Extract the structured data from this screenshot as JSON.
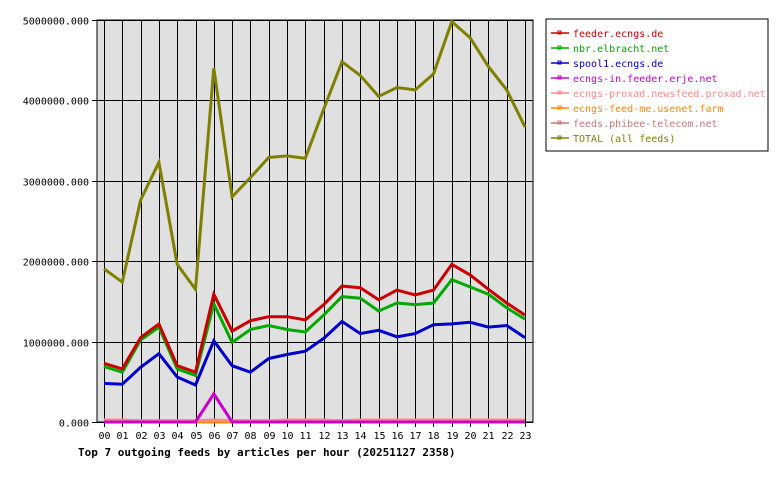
{
  "chart_data": {
    "type": "line",
    "title": "Top 7 outgoing feeds by articles per hour (20251127 2358)",
    "xlabel": "",
    "ylabel": "",
    "ylim": [
      0,
      5000000
    ],
    "yticks": [
      "0.000",
      "1000000.000",
      "2000000.000",
      "3000000.000",
      "4000000.000",
      "5000000.000"
    ],
    "grid": true,
    "legend_position": "right",
    "categories": [
      "00",
      "01",
      "02",
      "03",
      "04",
      "05",
      "06",
      "07",
      "08",
      "09",
      "10",
      "11",
      "12",
      "13",
      "14",
      "15",
      "16",
      "17",
      "18",
      "19",
      "20",
      "21",
      "22",
      "23"
    ],
    "series": [
      {
        "name": "feeder.ecngs.de",
        "color": "#cc0000",
        "values": [
          730000,
          660000,
          1050000,
          1220000,
          700000,
          620000,
          1590000,
          1130000,
          1260000,
          1310000,
          1310000,
          1270000,
          1460000,
          1690000,
          1670000,
          1520000,
          1640000,
          1580000,
          1640000,
          1960000,
          1830000,
          1650000,
          1480000,
          1330000
        ]
      },
      {
        "name": "nbr.elbracht.net",
        "color": "#00aa00",
        "values": [
          690000,
          620000,
          1020000,
          1180000,
          660000,
          580000,
          1470000,
          990000,
          1150000,
          1200000,
          1150000,
          1120000,
          1330000,
          1560000,
          1540000,
          1380000,
          1480000,
          1460000,
          1480000,
          1770000,
          1680000,
          1590000,
          1420000,
          1280000
        ]
      },
      {
        "name": "spool1.ecngs.de",
        "color": "#0000cc",
        "values": [
          480000,
          470000,
          680000,
          850000,
          560000,
          460000,
          1010000,
          700000,
          620000,
          790000,
          840000,
          880000,
          1040000,
          1250000,
          1100000,
          1140000,
          1060000,
          1100000,
          1210000,
          1220000,
          1240000,
          1180000,
          1200000,
          1050000
        ]
      },
      {
        "name": "ecngs-in.feeder.erje.net",
        "color": "#cc00cc",
        "values": [
          0,
          0,
          0,
          0,
          0,
          0,
          350000,
          0,
          0,
          0,
          0,
          0,
          0,
          0,
          0,
          0,
          0,
          0,
          0,
          0,
          0,
          0,
          0,
          0
        ]
      },
      {
        "name": "ecngs-proxad.newsfeed.proxad.net",
        "color": "#ff8888",
        "values": [
          25000,
          25000,
          15000,
          15000,
          15000,
          15000,
          25000,
          15000,
          15000,
          15000,
          25000,
          25000,
          25000,
          15000,
          25000,
          25000,
          25000,
          25000,
          25000,
          25000,
          25000,
          25000,
          25000,
          25000
        ]
      },
      {
        "name": "ecngs-feed-me.usenet.farm",
        "color": "#ff8800",
        "values": [
          0,
          0,
          0,
          0,
          0,
          0,
          0,
          0,
          0,
          0,
          0,
          0,
          0,
          0,
          0,
          0,
          0,
          0,
          0,
          0,
          25000,
          0,
          0,
          0
        ]
      },
      {
        "name": "feeds.phibee-telecom.net",
        "color": "#cc7777",
        "values": [
          15000,
          15000,
          15000,
          15000,
          15000,
          15000,
          15000,
          15000,
          15000,
          15000,
          15000,
          15000,
          15000,
          15000,
          15000,
          15000,
          15000,
          15000,
          15000,
          15000,
          15000,
          15000,
          15000,
          15000
        ]
      },
      {
        "name": "TOTAL (all feeds)",
        "color": "#808000",
        "values": [
          1905000,
          1740000,
          2760000,
          3230000,
          1960000,
          1650000,
          4400000,
          2800000,
          3040000,
          3290000,
          3310000,
          3280000,
          3890000,
          4480000,
          4310000,
          4050000,
          4160000,
          4130000,
          4330000,
          4980000,
          4780000,
          4420000,
          4130000,
          3670000
        ]
      }
    ]
  }
}
